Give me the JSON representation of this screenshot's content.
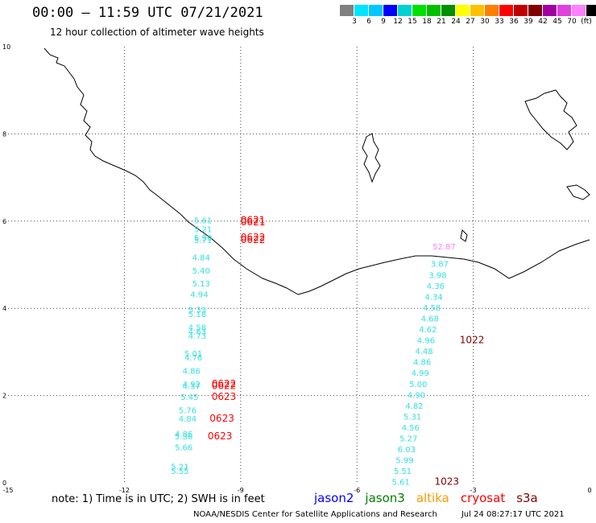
{
  "header": {
    "title": "00:00 – 11:59 UTC 07/21/2021",
    "subtitle": "12 hour collection of altimeter wave heights"
  },
  "legend": {
    "colors": [
      "#808080",
      "#00e5ff",
      "#00c8ff",
      "#0000ff",
      "#00d0d0",
      "#00e000",
      "#00c000",
      "#009000",
      "#ffff00",
      "#ffc000",
      "#ff8000",
      "#ff0000",
      "#c00000",
      "#800000",
      "#a000a0",
      "#e040e0",
      "#ff80ff",
      "#000000"
    ],
    "labels": [
      "3",
      "6",
      "9",
      "12",
      "15",
      "18",
      "21",
      "24",
      "27",
      "30",
      "33",
      "36",
      "39",
      "42",
      "45",
      "70",
      "(ft)"
    ]
  },
  "axes": {
    "x_ticks": [
      "-15",
      "-12",
      "-9",
      "-6",
      "-3",
      "0"
    ],
    "y_ticks": [
      "0",
      "2",
      "4",
      "6",
      "8",
      "10"
    ]
  },
  "map_data": {
    "xlim": [
      -15,
      0
    ],
    "ylim": [
      0,
      10
    ],
    "labels": [
      {
        "text": "5.61",
        "lon": -10.2,
        "lat": 5.95,
        "color": "#33e0e0"
      },
      {
        "text": "5.21",
        "lon": -10.2,
        "lat": 5.75,
        "color": "#33e0e0"
      },
      {
        "text": "5.90",
        "lon": -10.2,
        "lat": 5.55,
        "color": "#33e0e0"
      },
      {
        "text": "5.71",
        "lon": -10.2,
        "lat": 5.5,
        "color": "#33e0e0"
      },
      {
        "text": "4.84",
        "lon": -10.25,
        "lat": 5.1,
        "color": "#33e0e0"
      },
      {
        "text": "5.40",
        "lon": -10.25,
        "lat": 4.8,
        "color": "#33e0e0"
      },
      {
        "text": "5.13",
        "lon": -10.25,
        "lat": 4.5,
        "color": "#33e0e0"
      },
      {
        "text": "4.94",
        "lon": -10.3,
        "lat": 4.25,
        "color": "#33e0e0"
      },
      {
        "text": "5.33",
        "lon": -10.35,
        "lat": 3.9,
        "color": "#33e0e0"
      },
      {
        "text": "5.18",
        "lon": -10.35,
        "lat": 3.8,
        "color": "#33e0e0"
      },
      {
        "text": "4.58",
        "lon": -10.35,
        "lat": 3.5,
        "color": "#33e0e0"
      },
      {
        "text": "4.63",
        "lon": -10.35,
        "lat": 3.4,
        "color": "#33e0e0"
      },
      {
        "text": "4.73",
        "lon": -10.35,
        "lat": 3.3,
        "color": "#33e0e0"
      },
      {
        "text": "5.01",
        "lon": -10.45,
        "lat": 2.9,
        "color": "#33e0e0"
      },
      {
        "text": "4.76",
        "lon": -10.45,
        "lat": 2.8,
        "color": "#33e0e0"
      },
      {
        "text": "4.86",
        "lon": -10.5,
        "lat": 2.5,
        "color": "#33e0e0"
      },
      {
        "text": "4.92",
        "lon": -10.5,
        "lat": 2.2,
        "color": "#33e0e0"
      },
      {
        "text": "4.37",
        "lon": -10.5,
        "lat": 2.15,
        "color": "#33e0e0"
      },
      {
        "text": "5.45",
        "lon": -10.55,
        "lat": 1.9,
        "color": "#33e0e0"
      },
      {
        "text": "5.76",
        "lon": -10.6,
        "lat": 1.6,
        "color": "#33e0e0"
      },
      {
        "text": "4.84",
        "lon": -10.6,
        "lat": 1.4,
        "color": "#33e0e0"
      },
      {
        "text": "4.86",
        "lon": -10.7,
        "lat": 1.05,
        "color": "#33e0e0"
      },
      {
        "text": "5.36",
        "lon": -10.7,
        "lat": 1.0,
        "color": "#33e0e0"
      },
      {
        "text": "5.66",
        "lon": -10.7,
        "lat": 0.75,
        "color": "#33e0e0"
      },
      {
        "text": "5.21",
        "lon": -10.8,
        "lat": 0.3,
        "color": "#33e0e0"
      },
      {
        "text": "5.55",
        "lon": -10.8,
        "lat": 0.2,
        "color": "#33e0e0"
      },
      {
        "text": "0621",
        "lon": -9.0,
        "lat": 5.95,
        "color": "#ff0000"
      },
      {
        "text": "0621",
        "lon": -9.0,
        "lat": 5.9,
        "color": "#ff0000"
      },
      {
        "text": "0622",
        "lon": -9.0,
        "lat": 5.55,
        "color": "#ff0000"
      },
      {
        "text": "0622",
        "lon": -9.0,
        "lat": 5.5,
        "color": "#ff0000"
      },
      {
        "text": "0622",
        "lon": -9.75,
        "lat": 2.2,
        "color": "#ff0000"
      },
      {
        "text": "0622",
        "lon": -9.75,
        "lat": 2.15,
        "color": "#ff0000"
      },
      {
        "text": "0623",
        "lon": -9.75,
        "lat": 1.9,
        "color": "#ff0000"
      },
      {
        "text": "0623",
        "lon": -9.8,
        "lat": 1.4,
        "color": "#ff0000"
      },
      {
        "text": "0623",
        "lon": -9.85,
        "lat": 1.0,
        "color": "#ff0000"
      },
      {
        "text": "52.87",
        "lon": -4.05,
        "lat": 5.35,
        "color": "#ff80ff"
      },
      {
        "text": "3.87",
        "lon": -4.1,
        "lat": 4.95,
        "color": "#33e0e0"
      },
      {
        "text": "3.98",
        "lon": -4.15,
        "lat": 4.7,
        "color": "#33e0e0"
      },
      {
        "text": "4.36",
        "lon": -4.2,
        "lat": 4.45,
        "color": "#33e0e0"
      },
      {
        "text": "4.34",
        "lon": -4.25,
        "lat": 4.2,
        "color": "#33e0e0"
      },
      {
        "text": "4.58",
        "lon": -4.3,
        "lat": 3.95,
        "color": "#33e0e0"
      },
      {
        "text": "4.68",
        "lon": -4.35,
        "lat": 3.7,
        "color": "#33e0e0"
      },
      {
        "text": "4.62",
        "lon": -4.4,
        "lat": 3.45,
        "color": "#33e0e0"
      },
      {
        "text": "4.96",
        "lon": -4.45,
        "lat": 3.2,
        "color": "#33e0e0"
      },
      {
        "text": "4.48",
        "lon": -4.5,
        "lat": 2.95,
        "color": "#33e0e0"
      },
      {
        "text": "4.86",
        "lon": -4.55,
        "lat": 2.7,
        "color": "#33e0e0"
      },
      {
        "text": "4.99",
        "lon": -4.6,
        "lat": 2.45,
        "color": "#33e0e0"
      },
      {
        "text": "5.00",
        "lon": -4.65,
        "lat": 2.2,
        "color": "#33e0e0"
      },
      {
        "text": "4.90",
        "lon": -4.7,
        "lat": 1.95,
        "color": "#33e0e0"
      },
      {
        "text": "4.82",
        "lon": -4.75,
        "lat": 1.7,
        "color": "#33e0e0"
      },
      {
        "text": "5.31",
        "lon": -4.8,
        "lat": 1.45,
        "color": "#33e0e0"
      },
      {
        "text": "4.56",
        "lon": -4.85,
        "lat": 1.2,
        "color": "#33e0e0"
      },
      {
        "text": "5.27",
        "lon": -4.9,
        "lat": 0.95,
        "color": "#33e0e0"
      },
      {
        "text": "6.03",
        "lon": -4.95,
        "lat": 0.7,
        "color": "#33e0e0"
      },
      {
        "text": "5.99",
        "lon": -5.0,
        "lat": 0.45,
        "color": "#33e0e0"
      },
      {
        "text": "5.51",
        "lon": -5.05,
        "lat": 0.2,
        "color": "#33e0e0"
      },
      {
        "text": "5.61",
        "lon": -5.1,
        "lat": -0.05,
        "color": "#33e0e0"
      },
      {
        "text": "1022",
        "lon": -3.35,
        "lat": 3.2,
        "color": "#800000"
      },
      {
        "text": "1023",
        "lon": -4.0,
        "lat": -0.05,
        "color": "#800000"
      }
    ]
  },
  "footer": {
    "note": "note: 1) Time is in UTC; 2) SWH is in feet",
    "satellites": [
      {
        "name": "jason2",
        "color": "#0000ff"
      },
      {
        "name": "jason3",
        "color": "#008000"
      },
      {
        "name": "altika",
        "color": "#ff9900"
      },
      {
        "name": "cryosat",
        "color": "#ff0000"
      },
      {
        "name": "s3a",
        "color": "#800000"
      }
    ],
    "credit": "NOAA/NESDIS Center for Satellite Applications and Research",
    "timestamp": "Jul 24 08:27:17 UTC 2021"
  }
}
